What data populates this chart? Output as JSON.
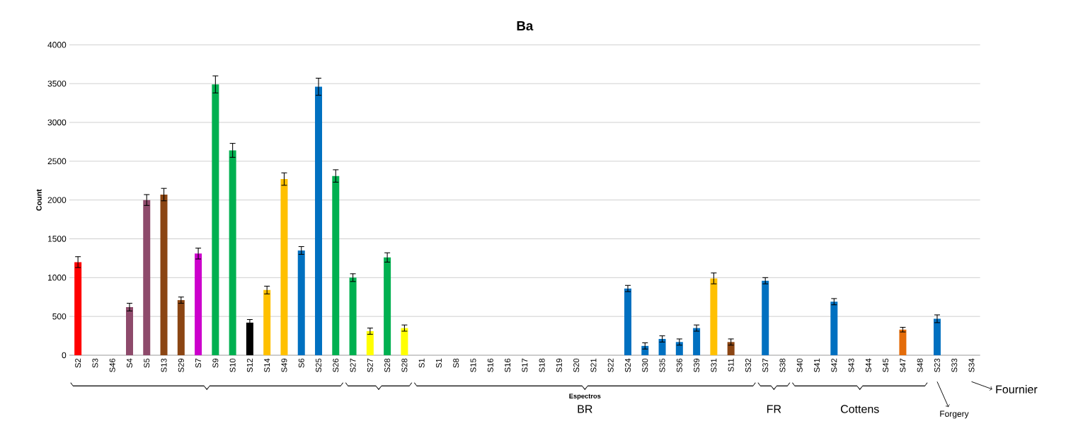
{
  "chart_data": {
    "type": "bar",
    "title": "Ba",
    "ylabel": "Count",
    "categories": [
      "S2",
      "S3",
      "S46",
      "S4",
      "S5",
      "S13",
      "S29",
      "S7",
      "S9",
      "S10",
      "S12",
      "S14",
      "S49",
      "S6",
      "S25",
      "S26",
      "S27",
      "S27",
      "S28",
      "S28",
      "S1",
      "S1",
      "S8",
      "S15",
      "S16",
      "S16",
      "S17",
      "S18",
      "S19",
      "S20",
      "S21",
      "S22",
      "S24",
      "S30",
      "S35",
      "S36",
      "S39",
      "S31",
      "S11",
      "S32",
      "S37",
      "S38",
      "S40",
      "S41",
      "S42",
      "S43",
      "S44",
      "S45",
      "S47",
      "S48",
      "S23",
      "S33",
      "S34"
    ],
    "values": [
      1200,
      0,
      0,
      620,
      2000,
      2070,
      710,
      1310,
      3490,
      2640,
      420,
      840,
      2270,
      1350,
      3460,
      2310,
      1000,
      310,
      1260,
      350,
      0,
      0,
      0,
      0,
      0,
      0,
      0,
      0,
      0,
      0,
      0,
      0,
      860,
      120,
      210,
      170,
      350,
      990,
      170,
      0,
      960,
      0,
      0,
      0,
      690,
      0,
      0,
      0,
      330,
      0,
      470,
      0,
      0
    ],
    "errors": [
      70,
      null,
      null,
      50,
      70,
      80,
      40,
      70,
      110,
      90,
      40,
      50,
      80,
      50,
      110,
      80,
      50,
      40,
      60,
      40,
      null,
      null,
      null,
      null,
      null,
      null,
      null,
      null,
      null,
      null,
      null,
      null,
      40,
      40,
      40,
      40,
      40,
      70,
      40,
      null,
      40,
      null,
      null,
      null,
      40,
      null,
      null,
      null,
      30,
      null,
      50,
      null,
      null
    ],
    "colors": [
      "#ff0000",
      "#0070c0",
      "#0070c0",
      "#8e4a6b",
      "#8e4a6b",
      "#8b4513",
      "#8b4513",
      "#cc00cc",
      "#00b050",
      "#00b050",
      "#000000",
      "#ffc000",
      "#ffc000",
      "#0070c0",
      "#0070c0",
      "#00b050",
      "#00b050",
      "#ffff00",
      "#00b050",
      "#ffff00",
      "#0070c0",
      "#0070c0",
      "#0070c0",
      "#0070c0",
      "#0070c0",
      "#0070c0",
      "#0070c0",
      "#0070c0",
      "#0070c0",
      "#0070c0",
      "#0070c0",
      "#0070c0",
      "#0070c0",
      "#0070c0",
      "#0070c0",
      "#0070c0",
      "#0070c0",
      "#ffc000",
      "#8b4513",
      "#0070c0",
      "#0070c0",
      "#0070c0",
      "#0070c0",
      "#0070c0",
      "#0070c0",
      "#0070c0",
      "#0070c0",
      "#0070c0",
      "#e46c0a",
      "#0070c0",
      "#0070c0",
      "#0070c0",
      "#0070c0"
    ],
    "ylim": [
      0,
      4000
    ],
    "yticks": [
      0,
      500,
      1000,
      1500,
      2000,
      2500,
      3000,
      3500,
      4000
    ],
    "grid": "y",
    "annotations": [
      "Espectros",
      "BR",
      "FR",
      "Cottens",
      "Fournier",
      "Forgery"
    ]
  }
}
